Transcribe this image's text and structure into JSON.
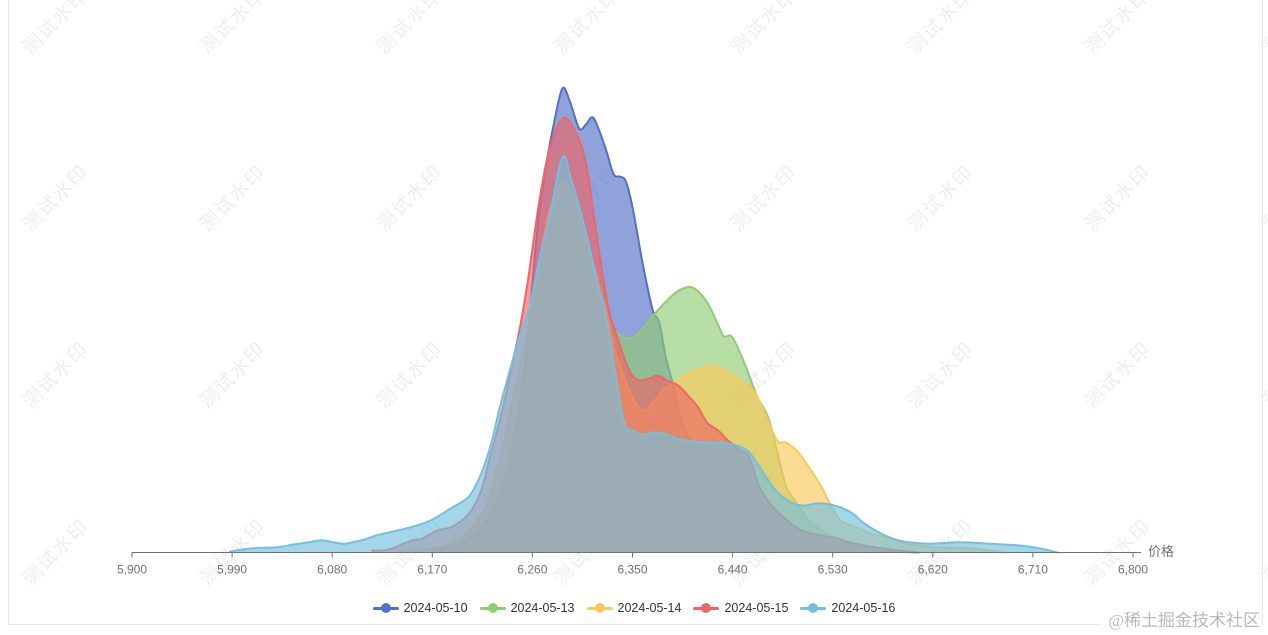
{
  "watermark": {
    "text": "测试水印"
  },
  "footer_credit": "@稀土掘金技术社区",
  "colors": {
    "axis": "#6E7079",
    "tick_label": "#6E7079",
    "legend_text": "#333333",
    "watermark": "#ededed",
    "credit": "#b9b9b9"
  },
  "chart_data": {
    "type": "area",
    "title": "",
    "xlabel": "价格",
    "ylabel": "",
    "xlim": [
      5900,
      6800
    ],
    "ylim": [
      0,
      1
    ],
    "grid": false,
    "legend_position": "bottom",
    "x_tick_values": [
      5900,
      5990,
      6080,
      6170,
      6260,
      6350,
      6440,
      6530,
      6620,
      6710,
      6800
    ],
    "x_ticks": [
      "5,900",
      "5,990",
      "6,080",
      "6,170",
      "6,260",
      "6,350",
      "6,440",
      "6,530",
      "6,620",
      "6,710",
      "6,800"
    ],
    "fill_opacity": 0.65,
    "series": [
      {
        "name": "2024-05-10",
        "color": "#5470c6",
        "points": [
          [
            6170,
            0.004
          ],
          [
            6183,
            0.011
          ],
          [
            6196,
            0.022
          ],
          [
            6208,
            0.039
          ],
          [
            6218,
            0.065
          ],
          [
            6228,
            0.108
          ],
          [
            6237,
            0.172
          ],
          [
            6244,
            0.25
          ],
          [
            6250,
            0.34
          ],
          [
            6255,
            0.44
          ],
          [
            6259,
            0.549
          ],
          [
            6263,
            0.66
          ],
          [
            6267,
            0.75
          ],
          [
            6272,
            0.83
          ],
          [
            6279,
            0.92
          ],
          [
            6287,
            1.0
          ],
          [
            6294,
            0.97
          ],
          [
            6302,
            0.914
          ],
          [
            6308,
            0.922
          ],
          [
            6314,
            0.938
          ],
          [
            6320,
            0.91
          ],
          [
            6327,
            0.862
          ],
          [
            6333,
            0.815
          ],
          [
            6339,
            0.81
          ],
          [
            6344,
            0.8
          ],
          [
            6350,
            0.744
          ],
          [
            6359,
            0.625
          ],
          [
            6368,
            0.524
          ],
          [
            6374,
            0.496
          ],
          [
            6380,
            0.42
          ],
          [
            6385,
            0.375
          ],
          [
            6394,
            0.285
          ],
          [
            6403,
            0.241
          ],
          [
            6412,
            0.216
          ],
          [
            6419,
            0.211
          ],
          [
            6425,
            0.168
          ],
          [
            6431,
            0.134
          ],
          [
            6436,
            0.123
          ],
          [
            6443,
            0.065
          ],
          [
            6451,
            0.028
          ],
          [
            6462,
            0.019
          ],
          [
            6473,
            0.015
          ],
          [
            6484,
            0.011
          ],
          [
            6492,
            0.008
          ]
        ]
      },
      {
        "name": "2024-05-13",
        "color": "#91cc75",
        "points": [
          [
            6176,
            0.002
          ],
          [
            6190,
            0.006
          ],
          [
            6203,
            0.017
          ],
          [
            6212,
            0.041
          ],
          [
            6221,
            0.069
          ],
          [
            6228,
            0.105
          ],
          [
            6236,
            0.17
          ],
          [
            6244,
            0.241
          ],
          [
            6251,
            0.328
          ],
          [
            6258,
            0.42
          ],
          [
            6264,
            0.5
          ],
          [
            6271,
            0.586
          ],
          [
            6278,
            0.664
          ],
          [
            6287,
            0.731
          ],
          [
            6295,
            0.711
          ],
          [
            6303,
            0.668
          ],
          [
            6312,
            0.599
          ],
          [
            6319,
            0.539
          ],
          [
            6327,
            0.5
          ],
          [
            6336,
            0.474
          ],
          [
            6347,
            0.461
          ],
          [
            6356,
            0.474
          ],
          [
            6367,
            0.506
          ],
          [
            6381,
            0.543
          ],
          [
            6392,
            0.565
          ],
          [
            6404,
            0.571
          ],
          [
            6416,
            0.543
          ],
          [
            6426,
            0.496
          ],
          [
            6432,
            0.466
          ],
          [
            6440,
            0.463
          ],
          [
            6453,
            0.394
          ],
          [
            6462,
            0.336
          ],
          [
            6473,
            0.284
          ],
          [
            6487,
            0.151
          ],
          [
            6496,
            0.112
          ],
          [
            6509,
            0.069
          ],
          [
            6527,
            0.037
          ],
          [
            6548,
            0.015
          ],
          [
            6572,
            0.004
          ],
          [
            6605,
            0.0
          ]
        ]
      },
      {
        "name": "2024-05-14",
        "color": "#fac858",
        "points": [
          [
            6140,
            0.002
          ],
          [
            6156,
            0.004
          ],
          [
            6174,
            0.011
          ],
          [
            6188,
            0.022
          ],
          [
            6203,
            0.047
          ],
          [
            6218,
            0.097
          ],
          [
            6227,
            0.17
          ],
          [
            6235,
            0.241
          ],
          [
            6242,
            0.328
          ],
          [
            6250,
            0.414
          ],
          [
            6257,
            0.5
          ],
          [
            6266,
            0.625
          ],
          [
            6275,
            0.733
          ],
          [
            6287,
            0.797
          ],
          [
            6298,
            0.76
          ],
          [
            6308,
            0.672
          ],
          [
            6318,
            0.594
          ],
          [
            6327,
            0.515
          ],
          [
            6334,
            0.435
          ],
          [
            6343,
            0.375
          ],
          [
            6352,
            0.323
          ],
          [
            6361,
            0.306
          ],
          [
            6370,
            0.328
          ],
          [
            6379,
            0.353
          ],
          [
            6388,
            0.366
          ],
          [
            6397,
            0.381
          ],
          [
            6406,
            0.392
          ],
          [
            6415,
            0.399
          ],
          [
            6424,
            0.403
          ],
          [
            6433,
            0.392
          ],
          [
            6442,
            0.381
          ],
          [
            6451,
            0.364
          ],
          [
            6460,
            0.345
          ],
          [
            6468,
            0.306
          ],
          [
            6480,
            0.241
          ],
          [
            6488,
            0.237
          ],
          [
            6500,
            0.213
          ],
          [
            6518,
            0.149
          ],
          [
            6527,
            0.108
          ],
          [
            6537,
            0.069
          ],
          [
            6552,
            0.054
          ],
          [
            6566,
            0.039
          ],
          [
            6580,
            0.032
          ],
          [
            6600,
            0.017
          ],
          [
            6626,
            0.011
          ],
          [
            6655,
            0.009
          ],
          [
            6684,
            0.0
          ]
        ]
      },
      {
        "name": "2024-05-15",
        "color": "#ee6666",
        "points": [
          [
            6116,
            0.004
          ],
          [
            6130,
            0.006
          ],
          [
            6142,
            0.017
          ],
          [
            6152,
            0.026
          ],
          [
            6161,
            0.03
          ],
          [
            6174,
            0.047
          ],
          [
            6188,
            0.056
          ],
          [
            6203,
            0.084
          ],
          [
            6214,
            0.134
          ],
          [
            6221,
            0.198
          ],
          [
            6229,
            0.269
          ],
          [
            6237,
            0.349
          ],
          [
            6244,
            0.429
          ],
          [
            6250,
            0.5
          ],
          [
            6257,
            0.603
          ],
          [
            6266,
            0.754
          ],
          [
            6275,
            0.866
          ],
          [
            6287,
            0.935
          ],
          [
            6298,
            0.91
          ],
          [
            6308,
            0.84
          ],
          [
            6318,
            0.68
          ],
          [
            6328,
            0.53
          ],
          [
            6337,
            0.459
          ],
          [
            6343,
            0.416
          ],
          [
            6349,
            0.384
          ],
          [
            6356,
            0.371
          ],
          [
            6365,
            0.375
          ],
          [
            6373,
            0.381
          ],
          [
            6381,
            0.371
          ],
          [
            6391,
            0.36
          ],
          [
            6400,
            0.338
          ],
          [
            6409,
            0.313
          ],
          [
            6417,
            0.28
          ],
          [
            6427,
            0.263
          ],
          [
            6436,
            0.241
          ],
          [
            6446,
            0.222
          ],
          [
            6455,
            0.205
          ],
          [
            6464,
            0.142
          ],
          [
            6473,
            0.108
          ],
          [
            6482,
            0.084
          ],
          [
            6500,
            0.05
          ],
          [
            6518,
            0.037
          ],
          [
            6532,
            0.032
          ],
          [
            6545,
            0.022
          ],
          [
            6563,
            0.013
          ],
          [
            6590,
            0.004
          ],
          [
            6607,
            0.0
          ]
        ]
      },
      {
        "name": "2024-05-16",
        "color": "#73c0de",
        "points": [
          [
            5988,
            0.002
          ],
          [
            6008,
            0.009
          ],
          [
            6030,
            0.011
          ],
          [
            6044,
            0.017
          ],
          [
            6059,
            0.022
          ],
          [
            6071,
            0.026
          ],
          [
            6089,
            0.019
          ],
          [
            6098,
            0.022
          ],
          [
            6109,
            0.028
          ],
          [
            6120,
            0.037
          ],
          [
            6138,
            0.047
          ],
          [
            6156,
            0.058
          ],
          [
            6170,
            0.071
          ],
          [
            6188,
            0.097
          ],
          [
            6203,
            0.121
          ],
          [
            6214,
            0.17
          ],
          [
            6223,
            0.235
          ],
          [
            6230,
            0.306
          ],
          [
            6239,
            0.386
          ],
          [
            6248,
            0.463
          ],
          [
            6257,
            0.524
          ],
          [
            6266,
            0.629
          ],
          [
            6275,
            0.718
          ],
          [
            6287,
            0.851
          ],
          [
            6295,
            0.802
          ],
          [
            6303,
            0.737
          ],
          [
            6312,
            0.651
          ],
          [
            6319,
            0.573
          ],
          [
            6325,
            0.524
          ],
          [
            6331,
            0.44
          ],
          [
            6337,
            0.35
          ],
          [
            6343,
            0.276
          ],
          [
            6350,
            0.263
          ],
          [
            6359,
            0.254
          ],
          [
            6370,
            0.259
          ],
          [
            6381,
            0.254
          ],
          [
            6392,
            0.244
          ],
          [
            6405,
            0.239
          ],
          [
            6419,
            0.237
          ],
          [
            6437,
            0.235
          ],
          [
            6453,
            0.22
          ],
          [
            6464,
            0.185
          ],
          [
            6478,
            0.136
          ],
          [
            6491,
            0.11
          ],
          [
            6503,
            0.101
          ],
          [
            6518,
            0.106
          ],
          [
            6535,
            0.099
          ],
          [
            6548,
            0.084
          ],
          [
            6557,
            0.065
          ],
          [
            6575,
            0.039
          ],
          [
            6593,
            0.024
          ],
          [
            6617,
            0.019
          ],
          [
            6644,
            0.022
          ],
          [
            6671,
            0.019
          ],
          [
            6698,
            0.015
          ],
          [
            6716,
            0.009
          ],
          [
            6732,
            0.0
          ]
        ]
      }
    ]
  }
}
